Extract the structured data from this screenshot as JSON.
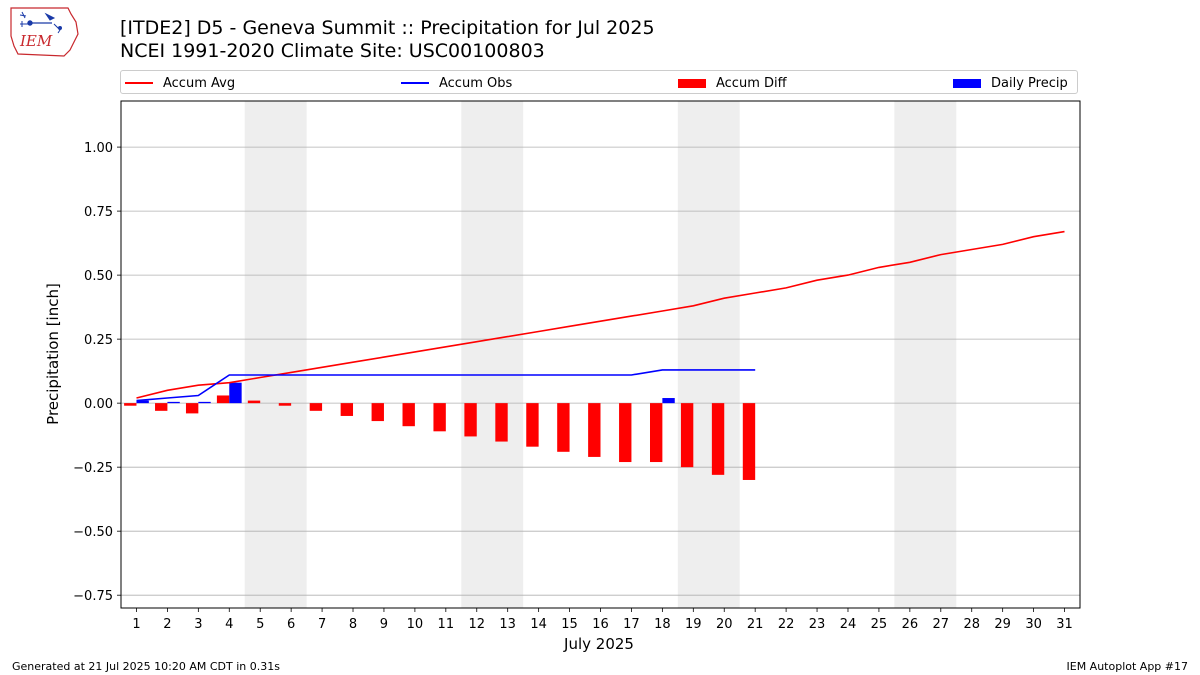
{
  "logo": {
    "text": "IEM"
  },
  "header": {
    "title_line1": "[ITDE2] D5 - Geneva Summit  :: Precipitation for Jul 2025",
    "title_line2": "NCEI 1991-2020 Climate Site: USC00100803"
  },
  "legend": {
    "accum_avg": "Accum Avg",
    "accum_obs": "Accum Obs",
    "accum_diff": "Accum Diff",
    "daily_precip": "Daily Precip"
  },
  "chart_data": {
    "type": "bar",
    "xlabel": "July 2025",
    "ylabel": "Precipitation [inch]",
    "ylim": [
      -0.8,
      1.18
    ],
    "xlim": [
      0.5,
      31.5
    ],
    "grid": "horizontal",
    "legend_position": "top",
    "x_ticks": [
      1,
      2,
      3,
      4,
      5,
      6,
      7,
      8,
      9,
      10,
      11,
      12,
      13,
      14,
      15,
      16,
      17,
      18,
      19,
      20,
      21,
      22,
      23,
      24,
      25,
      26,
      27,
      28,
      29,
      30,
      31
    ],
    "y_ticks": [
      -0.75,
      -0.5,
      -0.25,
      0.0,
      0.25,
      0.5,
      0.75,
      1.0
    ],
    "y_tick_labels": [
      "−0.75",
      "−0.50",
      "−0.25",
      "0.00",
      "0.25",
      "0.50",
      "0.75",
      "1.00"
    ],
    "weekend_shading": [
      [
        5,
        6
      ],
      [
        12,
        13
      ],
      [
        19,
        20
      ],
      [
        26,
        27
      ]
    ],
    "colors": {
      "accum_avg": "#ff0000",
      "accum_obs": "#0000ff",
      "accum_diff": "#ff0000",
      "daily_precip": "#0000ff",
      "weekend": "#eeeeee",
      "grid": "#b0b0b0"
    },
    "series": [
      {
        "name": "Accum Avg",
        "type": "line",
        "x": [
          1,
          2,
          3,
          4,
          5,
          6,
          7,
          8,
          9,
          10,
          11,
          12,
          13,
          14,
          15,
          16,
          17,
          18,
          19,
          20,
          21,
          22,
          23,
          24,
          25,
          26,
          27,
          28,
          29,
          30,
          31
        ],
        "values": [
          0.02,
          0.05,
          0.07,
          0.08,
          0.1,
          0.12,
          0.14,
          0.16,
          0.18,
          0.2,
          0.22,
          0.24,
          0.26,
          0.28,
          0.3,
          0.32,
          0.34,
          0.36,
          0.38,
          0.41,
          0.43,
          0.45,
          0.48,
          0.5,
          0.53,
          0.55,
          0.58,
          0.6,
          0.62,
          0.65,
          0.67
        ]
      },
      {
        "name": "Accum Obs",
        "type": "line",
        "x": [
          1,
          2,
          3,
          4,
          5,
          6,
          7,
          8,
          9,
          10,
          11,
          12,
          13,
          14,
          15,
          16,
          17,
          18,
          19,
          20,
          21
        ],
        "values": [
          0.01,
          0.02,
          0.03,
          0.11,
          0.11,
          0.11,
          0.11,
          0.11,
          0.11,
          0.11,
          0.11,
          0.11,
          0.11,
          0.11,
          0.11,
          0.11,
          0.11,
          0.13,
          0.13,
          0.13,
          0.13
        ]
      },
      {
        "name": "Accum Diff",
        "type": "bar",
        "x": [
          1,
          2,
          3,
          4,
          5,
          6,
          7,
          8,
          9,
          10,
          11,
          12,
          13,
          14,
          15,
          16,
          17,
          18,
          19,
          20,
          21
        ],
        "values": [
          -0.01,
          -0.03,
          -0.04,
          0.03,
          0.01,
          -0.01,
          -0.03,
          -0.05,
          -0.07,
          -0.09,
          -0.11,
          -0.13,
          -0.15,
          -0.17,
          -0.19,
          -0.21,
          -0.23,
          -0.23,
          -0.25,
          -0.28,
          -0.3
        ]
      },
      {
        "name": "Daily Precip",
        "type": "bar",
        "x": [
          1,
          2,
          3,
          4,
          18
        ],
        "values": [
          0.01,
          0.005,
          0.005,
          0.08,
          0.02
        ]
      }
    ]
  },
  "footer": {
    "left": "Generated at 21 Jul 2025 10:20 AM CDT in 0.31s",
    "right": "IEM Autoplot App #17"
  }
}
